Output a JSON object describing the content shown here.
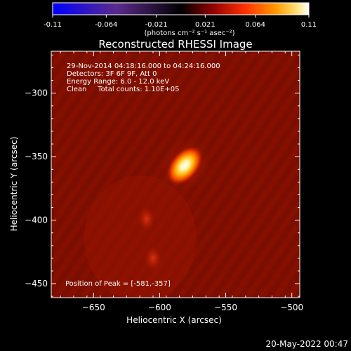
{
  "colorbar": {
    "ticks": [
      -0.11,
      -0.064,
      -0.021,
      0.021,
      0.064,
      0.11
    ],
    "tick_labels": [
      "-0.11",
      "-0.064",
      "-0.021",
      "0.021",
      "0.064",
      "0.11"
    ],
    "units_label": "(photons cm⁻² s⁻¹ asec⁻²)",
    "colors": [
      "#0000ff",
      "#5b2a8c",
      "#000000",
      "#8b0000",
      "#ff3000",
      "#ff9800",
      "#ffe070",
      "#ffffff"
    ]
  },
  "chart_data": {
    "type": "heatmap",
    "title": "Reconstructed RHESSI Image",
    "xlabel": "Heliocentric X (arcsec)",
    "ylabel": "Heliocentric Y (arcsec)",
    "xlim": [
      -682,
      -494
    ],
    "ylim": [
      -461,
      -267
    ],
    "x_ticks": [
      -650,
      -600,
      -550,
      -500
    ],
    "y_ticks": [
      -300,
      -350,
      -400,
      -450
    ],
    "x_tick_labels": [
      "−650",
      "−600",
      "−550",
      "−500"
    ],
    "y_tick_labels": [
      "−300",
      "−350",
      "−400",
      "−450"
    ],
    "sources": [
      {
        "x": -581,
        "y": -357,
        "intensity": 0.11
      },
      {
        "x": -610,
        "y": -399,
        "intensity": 0.035
      },
      {
        "x": -605,
        "y": -430,
        "intensity": 0.03
      }
    ],
    "annotations": [
      "29-Nov-2014 04:18:16.000 to 04:24:16.000",
      "Detectors: 3F 6F 9F, Att 0",
      "Energy Range: 6.0 - 12.0 keV",
      "Clean     Total counts: 1.10E+05"
    ],
    "peak_label": "Position of Peak = [-581,-357]"
  },
  "footer": {
    "date": "20-May-2022 00:47"
  }
}
